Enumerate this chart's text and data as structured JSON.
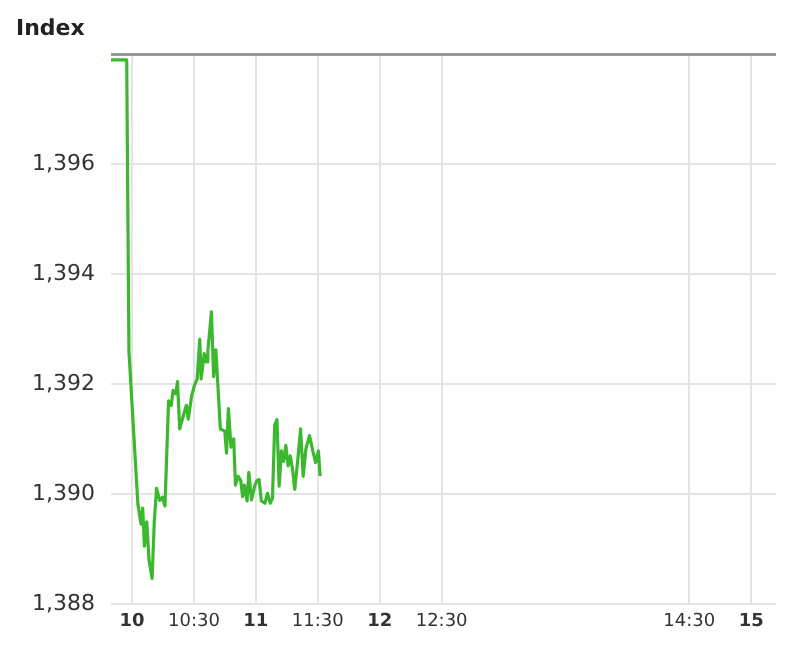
{
  "chart_data": {
    "type": "line",
    "title": "Index",
    "x": [
      9.83,
      9.957,
      9.975,
      10.047,
      10.072,
      10.086,
      10.1,
      10.119,
      10.137,
      10.162,
      10.18,
      10.198,
      10.223,
      10.245,
      10.266,
      10.295,
      10.317,
      10.331,
      10.353,
      10.367,
      10.385,
      10.414,
      10.439,
      10.454,
      10.482,
      10.504,
      10.526,
      10.547,
      10.558,
      10.583,
      10.598,
      10.612,
      10.641,
      10.659,
      10.677,
      10.713,
      10.749,
      10.763,
      10.778,
      10.799,
      10.821,
      10.835,
      10.857,
      10.878,
      10.893,
      10.907,
      10.929,
      10.943,
      10.965,
      10.99,
      11.008,
      11.026,
      11.044,
      11.073,
      11.094,
      11.116,
      11.134,
      11.152,
      11.17,
      11.188,
      11.206,
      11.224,
      11.242,
      11.26,
      11.278,
      11.296,
      11.314,
      11.339,
      11.361,
      11.382,
      11.404,
      11.433,
      11.462,
      11.483,
      11.505,
      11.519
    ],
    "series": [
      {
        "color": "#3cb82e",
        "values": [
          1397.9,
          1397.9,
          1392.6,
          1389.83,
          1389.46,
          1389.75,
          1389.06,
          1389.5,
          1388.81,
          1388.47,
          1389.52,
          1390.11,
          1389.89,
          1389.95,
          1389.79,
          1391.7,
          1391.62,
          1391.89,
          1391.83,
          1392.05,
          1391.19,
          1391.43,
          1391.62,
          1391.37,
          1391.8,
          1391.98,
          1392.1,
          1392.82,
          1392.1,
          1392.56,
          1392.41,
          1392.6,
          1393.32,
          1392.14,
          1392.63,
          1391.19,
          1391.15,
          1390.75,
          1391.56,
          1390.86,
          1391.01,
          1390.17,
          1390.33,
          1390.25,
          1389.96,
          1390.17,
          1389.88,
          1390.4,
          1389.9,
          1390.15,
          1390.25,
          1390.27,
          1389.88,
          1389.84,
          1390.02,
          1389.84,
          1389.93,
          1391.26,
          1391.36,
          1390.15,
          1390.79,
          1390.6,
          1390.89,
          1390.52,
          1390.7,
          1390.46,
          1390.09,
          1390.64,
          1391.19,
          1390.33,
          1390.83,
          1391.07,
          1390.77,
          1390.58,
          1390.79,
          1390.33
        ]
      }
    ],
    "xlim": [
      9.83,
      15.2
    ],
    "xticks": [
      10,
      {
        "value": 10.5,
        "label": "10:30"
      },
      11,
      {
        "value": 11.5,
        "label": "11:30"
      },
      12,
      {
        "value": 12.5,
        "label": "12:30"
      },
      {
        "value": 14.5,
        "label": "14:30"
      },
      15
    ],
    "ylim": [
      1388,
      1398
    ],
    "yticks": [
      {
        "value": 1388,
        "label": "1,388"
      },
      {
        "value": 1390,
        "label": "1,390"
      },
      {
        "value": 1392,
        "label": "1,392"
      },
      {
        "value": 1394,
        "label": "1,394"
      },
      {
        "value": 1396,
        "label": "1,396"
      }
    ],
    "grid": true,
    "legend": false,
    "marker": "none",
    "line_style": "solid"
  }
}
